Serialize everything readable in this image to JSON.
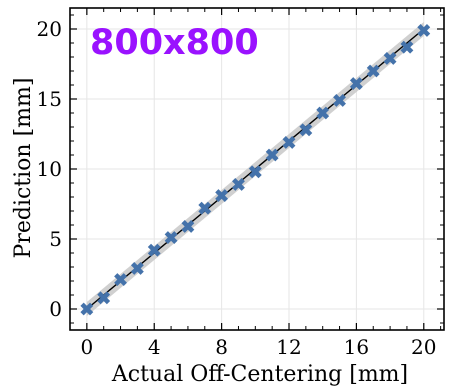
{
  "chart_data": {
    "type": "scatter",
    "title": "",
    "annotation": "800x800",
    "xlabel": "Actual Off-Centering [mm]",
    "ylabel": "Prediction [mm]",
    "xlim": [
      -1,
      21.2
    ],
    "ylim": [
      -1.5,
      21.5
    ],
    "xticks": [
      0,
      4,
      8,
      12,
      16,
      20
    ],
    "yticks": [
      0,
      5,
      10,
      15,
      20
    ],
    "grid": true,
    "legend": "none",
    "reference_line": {
      "x": [
        0,
        20
      ],
      "y": [
        0,
        20
      ],
      "band": 0.5
    },
    "series": [
      {
        "marker": "x",
        "x": [
          0,
          1,
          2,
          3,
          4,
          5,
          6,
          7,
          8,
          9,
          10,
          11,
          12,
          13,
          14,
          15,
          16,
          17,
          18,
          19,
          20
        ],
        "y": [
          0,
          0.8,
          2.1,
          2.9,
          4.2,
          5.1,
          5.9,
          7.2,
          8.1,
          8.9,
          9.8,
          11.0,
          11.9,
          12.8,
          14.0,
          14.9,
          16.1,
          17.0,
          17.9,
          18.7,
          19.9
        ]
      }
    ],
    "colors": {
      "marker": "#4472aa",
      "line": "#000000",
      "band": "#c8c8c8",
      "annotation": "#9a12ff",
      "grid": "#e6e6e6"
    }
  }
}
